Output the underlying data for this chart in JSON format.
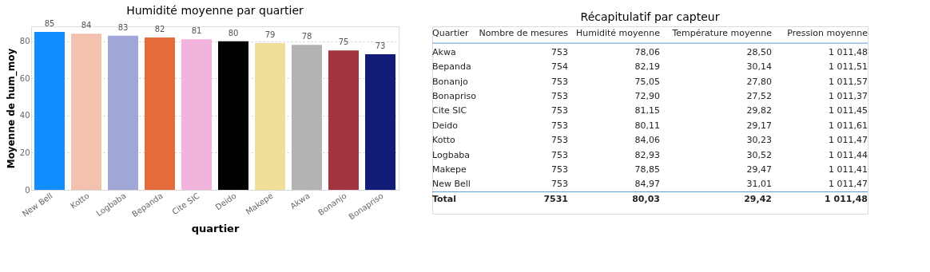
{
  "chart_data": [
    {
      "type": "bar",
      "title": "Humidité moyenne par quartier",
      "xlabel": "quartier",
      "ylabel": "Moyenne de hum_moy",
      "categories": [
        "New Bell",
        "Kotto",
        "Logbaba",
        "Bepanda",
        "Cite SIC",
        "Deido",
        "Makepe",
        "Akwa",
        "Bonanjo",
        "Bonapriso"
      ],
      "values": [
        85,
        84,
        83,
        82,
        81,
        80,
        79,
        78,
        75,
        73
      ],
      "colors": [
        "#118dff",
        "#f3c2ae",
        "#a0a6d6",
        "#e46c3a",
        "#f2b3dc",
        "#000000",
        "#efdf98",
        "#b3b3b3",
        "#a2333f",
        "#111b78"
      ],
      "ylim": [
        0,
        88
      ],
      "yticks": [
        0,
        20,
        40,
        60,
        80
      ],
      "grid": "y",
      "data_labels": true
    },
    {
      "type": "other",
      "title": "Récapitulatif par capteur",
      "categories": [
        "Quartier",
        "Nombre de mesures",
        "Humidité moyenne",
        "Température moyenne",
        "Pression moyenne"
      ],
      "y_categories": [
        "Akwa",
        "Bepanda",
        "Bonanjo",
        "Bonapriso",
        "Cite SIC",
        "Deido",
        "Kotto",
        "Logbaba",
        "Makepe",
        "New Bell",
        "Total"
      ],
      "cell_labels": [
        [
          "753",
          "78,06",
          "28,50",
          "1 011,48"
        ],
        [
          "754",
          "82,19",
          "30,14",
          "1 011,51"
        ],
        [
          "753",
          "75,05",
          "27,80",
          "1 011,57"
        ],
        [
          "753",
          "72,90",
          "27,52",
          "1 011,37"
        ],
        [
          "753",
          "81,15",
          "29,82",
          "1 011,45"
        ],
        [
          "753",
          "80,11",
          "29,17",
          "1 011,61"
        ],
        [
          "753",
          "84,06",
          "30,23",
          "1 011,47"
        ],
        [
          "753",
          "82,93",
          "30,52",
          "1 011,44"
        ],
        [
          "753",
          "78,85",
          "29,47",
          "1 011,41"
        ],
        [
          "753",
          "84,97",
          "31,01",
          "1 011,47"
        ],
        [
          "7531",
          "80,03",
          "29,42",
          "1 011,48"
        ]
      ]
    }
  ]
}
